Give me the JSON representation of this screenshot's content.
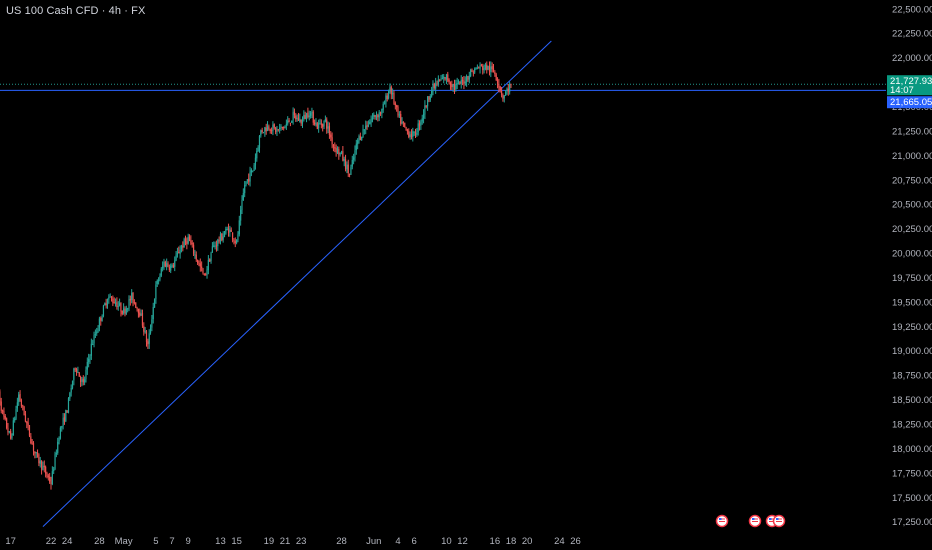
{
  "header": {
    "title": "US 100 Cash CFD · 4h · FX"
  },
  "colors": {
    "background": "#000000",
    "bull": "#26a69a",
    "bear": "#ef5350",
    "line": "#2962ff",
    "axis_text": "#b2b5be",
    "current_tag": "#089981",
    "level_tag": "#2962ff"
  },
  "chart_data": {
    "type": "candlestick",
    "title": "US 100 Cash CFD · 4h · FX",
    "y_ticks": [
      "22,500.00",
      "22,250.00",
      "22,000.00",
      "21,750.00",
      "21,500.00",
      "21,250.00",
      "21,000.00",
      "20,750.00",
      "20,500.00",
      "20,250.00",
      "20,000.00",
      "19,750.00",
      "19,500.00",
      "19,250.00",
      "19,000.00",
      "18,750.00",
      "18,500.00",
      "18,250.00",
      "18,000.00",
      "17,750.00",
      "17,500.00",
      "17,250.00"
    ],
    "y_tick_values": [
      22500,
      22250,
      22000,
      21750,
      21500,
      21250,
      21000,
      20750,
      20500,
      20250,
      20000,
      19750,
      19500,
      19250,
      19000,
      18750,
      18500,
      18250,
      18000,
      17750,
      17500,
      17250
    ],
    "ylim": [
      17170,
      22570
    ],
    "x_ticks": [
      {
        "day": -10,
        "label": "17"
      },
      {
        "day": -5,
        "label": "22"
      },
      {
        "day": -3,
        "label": "24"
      },
      {
        "day": 1,
        "label": "28"
      },
      {
        "day": 4,
        "label": "May"
      },
      {
        "day": 8,
        "label": "5"
      },
      {
        "day": 10,
        "label": "7"
      },
      {
        "day": 12,
        "label": "9"
      },
      {
        "day": 16,
        "label": "13"
      },
      {
        "day": 18,
        "label": "15"
      },
      {
        "day": 22,
        "label": "19"
      },
      {
        "day": 24,
        "label": "21"
      },
      {
        "day": 26,
        "label": "23"
      },
      {
        "day": 31,
        "label": "28"
      },
      {
        "day": 35,
        "label": "Jun"
      },
      {
        "day": 38,
        "label": "4"
      },
      {
        "day": 40,
        "label": "6"
      },
      {
        "day": 44,
        "label": "10"
      },
      {
        "day": 46,
        "label": "12"
      },
      {
        "day": 50,
        "label": "16"
      },
      {
        "day": 52,
        "label": "18"
      },
      {
        "day": 54,
        "label": "20"
      },
      {
        "day": 58,
        "label": "24"
      },
      {
        "day": 60,
        "label": "26"
      }
    ],
    "daily_closes": [
      [
        -12,
        18800
      ],
      [
        -11,
        18350
      ],
      [
        -10,
        18100
      ],
      [
        -9,
        18550
      ],
      [
        -8,
        18250
      ],
      [
        -7,
        17950
      ],
      [
        -5,
        17650
      ],
      [
        -4,
        18150
      ],
      [
        -3,
        18400
      ],
      [
        -2,
        18850
      ],
      [
        -1,
        18650
      ],
      [
        0,
        19050
      ],
      [
        1,
        19300
      ],
      [
        2,
        19550
      ],
      [
        3,
        19500
      ],
      [
        4,
        19400
      ],
      [
        5,
        19550
      ],
      [
        6,
        19400
      ],
      [
        7,
        19050
      ],
      [
        8,
        19650
      ],
      [
        9,
        19900
      ],
      [
        10,
        19850
      ],
      [
        11,
        20050
      ],
      [
        12,
        20150
      ],
      [
        13,
        19950
      ],
      [
        14,
        19750
      ],
      [
        15,
        20050
      ],
      [
        16,
        20150
      ],
      [
        17,
        20250
      ],
      [
        18,
        20100
      ],
      [
        19,
        20700
      ],
      [
        20,
        20850
      ],
      [
        21,
        21250
      ],
      [
        22,
        21300
      ],
      [
        23,
        21250
      ],
      [
        24,
        21300
      ],
      [
        25,
        21400
      ],
      [
        26,
        21350
      ],
      [
        27,
        21450
      ],
      [
        28,
        21300
      ],
      [
        29,
        21350
      ],
      [
        30,
        21100
      ],
      [
        31,
        21000
      ],
      [
        32,
        20800
      ],
      [
        33,
        21150
      ],
      [
        34,
        21300
      ],
      [
        35,
        21400
      ],
      [
        36,
        21450
      ],
      [
        37,
        21700
      ],
      [
        38,
        21400
      ],
      [
        39,
        21250
      ],
      [
        40,
        21200
      ],
      [
        41,
        21400
      ],
      [
        42,
        21650
      ],
      [
        43,
        21750
      ],
      [
        44,
        21800
      ],
      [
        45,
        21700
      ],
      [
        46,
        21750
      ],
      [
        47,
        21850
      ],
      [
        48,
        21900
      ],
      [
        49,
        21900
      ],
      [
        50,
        21850
      ],
      [
        51,
        21600
      ],
      [
        52,
        21728
      ]
    ],
    "last_price": 21727.93,
    "last_price_label": "21,727.93",
    "countdown_label": "14:07",
    "horizontal_level": 21665.05,
    "horizontal_level_label": "21,665.05",
    "trendline": {
      "start": {
        "day": -6,
        "price": 17200
      },
      "end": {
        "day": 57,
        "price": 22170
      }
    }
  }
}
